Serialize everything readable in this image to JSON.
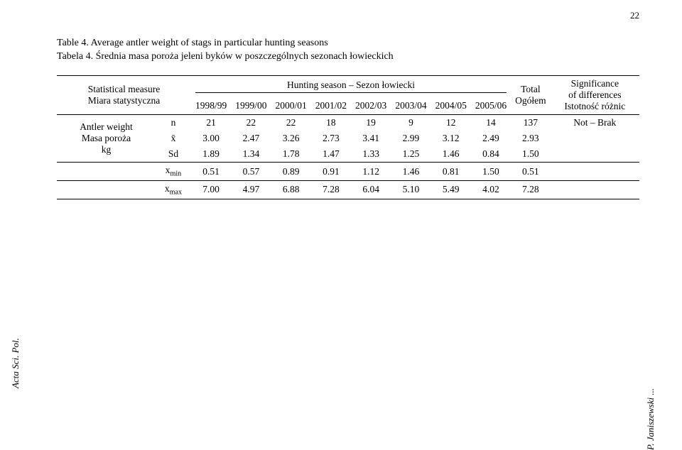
{
  "page_number": "22",
  "caption": {
    "line1": "Table 4. Average antler weight of stags in particular hunting seasons",
    "line2": "Tabela 4. Średnia masa poroża jeleni byków w poszczególnych sezonach łowieckich"
  },
  "header": {
    "stub_line1": "Statistical measure",
    "stub_line2": "Miara statystyczna",
    "season_group": "Hunting season – Sezon łowiecki",
    "seasons": [
      "1998/99",
      "1999/00",
      "2000/01",
      "2001/02",
      "2002/03",
      "2003/04",
      "2004/05",
      "2005/06"
    ],
    "total_line1": "Total",
    "total_line2": "Ogółem",
    "sig_line1": "Significance",
    "sig_line2": "of differences",
    "sig_line3": "Istotność różnic"
  },
  "rowlabels": {
    "trait_line1": "Antler weight",
    "trait_line2": "Masa poroża",
    "trait_line3": "kg"
  },
  "stats": {
    "n": {
      "label": "n",
      "vals": [
        "21",
        "22",
        "22",
        "18",
        "19",
        "9",
        "12",
        "14",
        "137"
      ],
      "sig": "Not – Brak"
    },
    "mean": {
      "label": "x̄",
      "vals": [
        "3.00",
        "2.47",
        "3.26",
        "2.73",
        "3.41",
        "2.99",
        "3.12",
        "2.49",
        "2.93"
      ],
      "sig": ""
    },
    "sd": {
      "label": "Sd",
      "vals": [
        "1.89",
        "1.34",
        "1.78",
        "1.47",
        "1.33",
        "1.25",
        "1.46",
        "0.84",
        "1.50"
      ],
      "sig": ""
    },
    "xmin": {
      "label_plain": "x",
      "label_sub": "min",
      "vals": [
        "0.51",
        "0.57",
        "0.89",
        "0.91",
        "1.12",
        "1.46",
        "0.81",
        "1.50",
        "0.51"
      ],
      "sig": ""
    },
    "xmax": {
      "label_plain": "x",
      "label_sub": "max",
      "vals": [
        "7.00",
        "4.97",
        "6.88",
        "7.28",
        "6.04",
        "5.10",
        "5.49",
        "4.02",
        "7.28"
      ],
      "sig": ""
    }
  },
  "footer": {
    "left": "Acta Sci. Pol.",
    "right": "P. Janiszewski ..."
  }
}
